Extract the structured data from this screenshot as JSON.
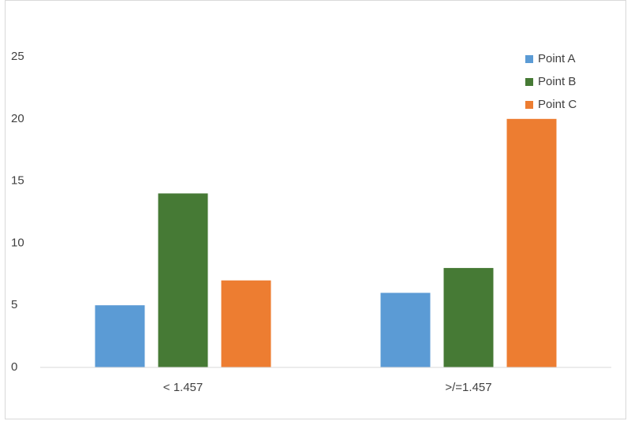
{
  "chart_data": {
    "type": "bar",
    "categories": [
      "< 1.457",
      ">/=1.457"
    ],
    "series": [
      {
        "name": "Point A",
        "color": "#5b9bd5",
        "values": [
          5,
          6
        ]
      },
      {
        "name": "Point B",
        "color": "#467a35",
        "values": [
          14,
          8
        ]
      },
      {
        "name": "Point C",
        "color": "#ed7d31",
        "values": [
          7,
          20
        ]
      }
    ],
    "ylim": [
      0,
      25
    ],
    "yticks": [
      0,
      5,
      10,
      15,
      20,
      25
    ],
    "grid": false,
    "legend": "top-right"
  }
}
